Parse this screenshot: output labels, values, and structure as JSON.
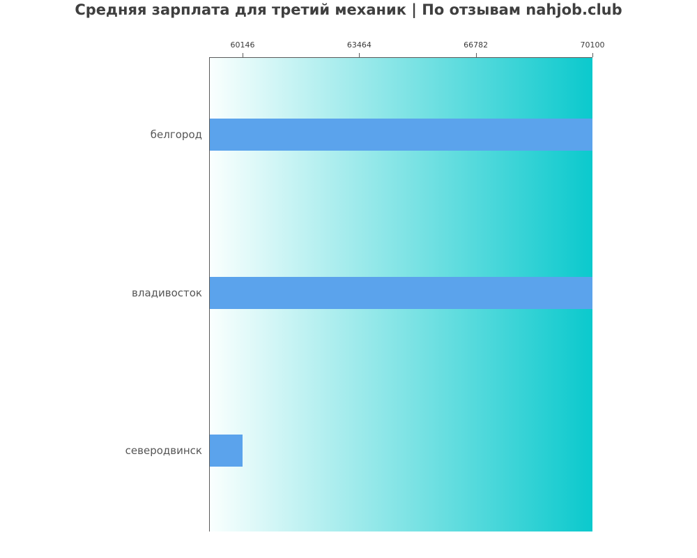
{
  "title": "Средняя зарплата для третий механик | По отзывам nahjob.club",
  "chart_data": {
    "type": "bar",
    "orientation": "horizontal",
    "title": "Средняя зарплата для третий механик | По отзывам nahjob.club",
    "categories": [
      "белгород",
      "владивосток",
      "северодвинск"
    ],
    "values": [
      70100,
      70100,
      60146
    ],
    "x_ticks": [
      60146,
      63464,
      66782,
      70100
    ],
    "xlim": [
      59214,
      70100
    ],
    "xlabel": "",
    "ylabel": "",
    "axis_position": "top",
    "grid": false,
    "legend": "none",
    "bar_color": "#5ba3ec",
    "plot_gradient_left": "#fafffe",
    "plot_gradient_right": "#0bc9cd",
    "spine_color": "#5a5a5a",
    "tick_label_color": "#3a3a3a",
    "category_label_color": "#555555",
    "title_color": "#3f3f3f"
  }
}
